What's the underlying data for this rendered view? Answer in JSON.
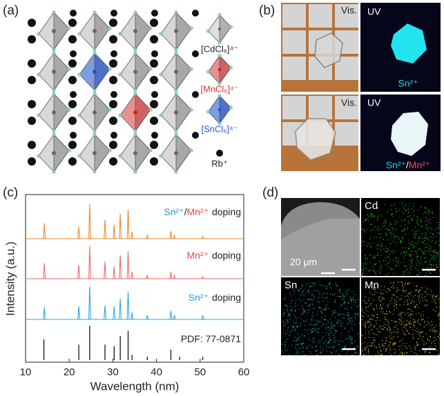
{
  "panel_a": {
    "label": "(a)",
    "legend": [
      "[CdCl₆]⁴⁻",
      "[MnCl₆]⁴⁻",
      "[SnCl₆]⁴⁻",
      "Rb⁺"
    ]
  },
  "panel_b": {
    "label": "(b)",
    "top": {
      "vis": "Vis.",
      "uv": "UV",
      "ion": "Sn²⁺"
    },
    "bottom": {
      "vis": "Vis.",
      "uv": "UV",
      "ion_parts": [
        "Sn²⁺",
        "/",
        "Mn²⁺"
      ]
    }
  },
  "chart_data": {
    "type": "line",
    "panel_label": "(c)",
    "xlabel": "Wavelength (nm)",
    "ylabel": "Intensity (a.u.)",
    "xlim": [
      10,
      60
    ],
    "xticks": [
      10,
      20,
      30,
      40,
      50,
      60
    ],
    "series": [
      {
        "name": [
          "Sn²⁺",
          "/",
          "Mn²⁺",
          "doping"
        ],
        "name_colors": [
          "#1ca0e0",
          "#222222",
          "#e84545",
          "#222222"
        ],
        "color": "#e8882e",
        "style": "line",
        "x": [
          14.3,
          22.2,
          24.7,
          28.2,
          30.3,
          31.7,
          33.5,
          34.4,
          37.9,
          43.3,
          44.1,
          50.6
        ],
        "values": [
          0.45,
          0.35,
          1.0,
          0.55,
          0.4,
          0.72,
          0.85,
          0.2,
          0.1,
          0.22,
          0.1,
          0.06
        ]
      },
      {
        "name": [
          "Mn²⁺",
          "doping"
        ],
        "name_colors": [
          "#e84545",
          "#222222"
        ],
        "color": "#ec6a6a",
        "style": "line",
        "x": [
          14.3,
          22.2,
          24.7,
          28.2,
          30.3,
          31.7,
          33.5,
          34.4,
          37.9,
          43.3,
          44.1,
          50.6
        ],
        "values": [
          0.45,
          0.4,
          0.95,
          0.5,
          0.35,
          0.68,
          0.8,
          0.2,
          0.1,
          0.2,
          0.1,
          0.06
        ]
      },
      {
        "name": [
          "Sn²⁺",
          "doping"
        ],
        "name_colors": [
          "#1ca0e0",
          "#222222"
        ],
        "color": "#2aa6e0",
        "style": "line",
        "x": [
          14.3,
          22.2,
          24.7,
          28.2,
          30.3,
          31.7,
          33.5,
          34.4,
          37.9,
          43.3,
          44.1,
          50.6
        ],
        "values": [
          0.35,
          0.38,
          0.95,
          0.4,
          0.38,
          0.6,
          0.8,
          0.2,
          0.12,
          0.25,
          0.12,
          0.12
        ]
      },
      {
        "name": [
          "PDF: 77-0871"
        ],
        "name_colors": [
          "#222222"
        ],
        "color": "#111111",
        "style": "stick",
        "x": [
          14.2,
          22.2,
          24.7,
          28.2,
          30.3,
          31.7,
          33.5,
          34.4,
          37.9,
          43.3,
          45.3,
          50.6
        ],
        "values": [
          0.6,
          0.45,
          1.0,
          0.45,
          0.4,
          0.7,
          0.85,
          0.15,
          0.1,
          0.3,
          0.1,
          0.1
        ]
      }
    ]
  },
  "panel_d": {
    "label": "(d)",
    "maps": [
      "Cd",
      "Sn",
      "Mn"
    ],
    "scale_bar": "20 μm"
  }
}
